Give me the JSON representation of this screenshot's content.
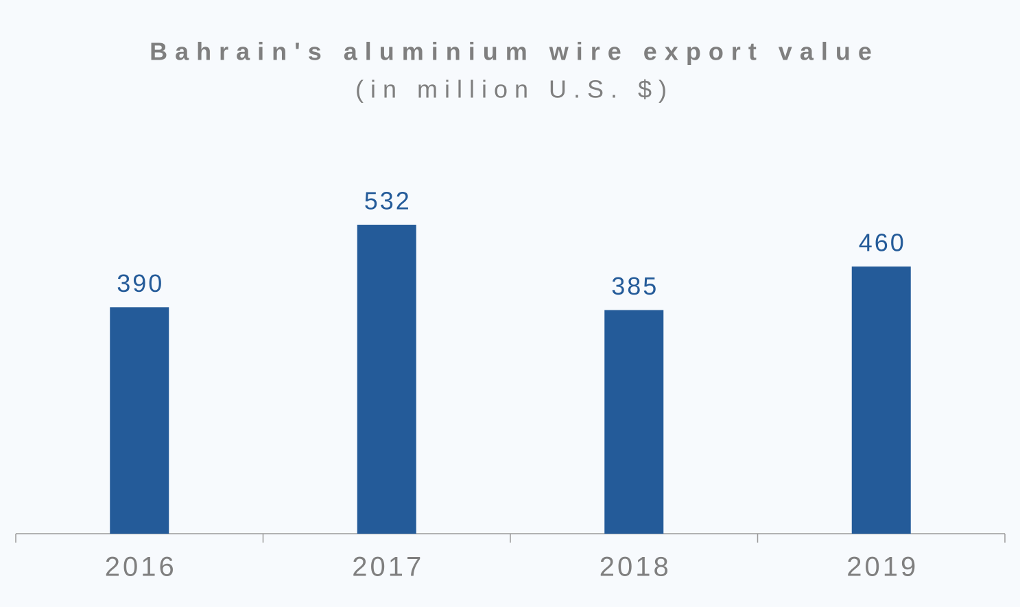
{
  "chart_data": {
    "type": "bar",
    "title": "Bahrain's aluminium wire export value",
    "subtitle": "(in million U.S. $)",
    "categories": [
      "2016",
      "2017",
      "2018",
      "2019"
    ],
    "values": [
      390,
      532,
      385,
      460
    ],
    "color": "#245b99"
  }
}
